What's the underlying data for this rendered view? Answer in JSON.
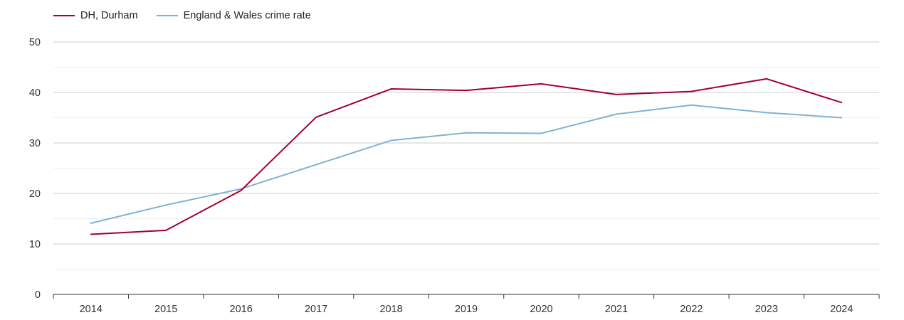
{
  "chart_data": {
    "type": "line",
    "title": "",
    "xlabel": "",
    "ylabel": "",
    "categories": [
      "2014",
      "2015",
      "2016",
      "2017",
      "2018",
      "2019",
      "2020",
      "2021",
      "2022",
      "2023",
      "2024"
    ],
    "ylim": [
      0,
      50
    ],
    "yticks": [
      "0",
      "10",
      "20",
      "30",
      "40",
      "50"
    ],
    "grid": true,
    "legend_position": "top-left",
    "series": [
      {
        "name": "DH, Durham",
        "color": "#a3002c",
        "values": [
          11.9,
          12.7,
          20.6,
          35.1,
          40.7,
          40.4,
          41.7,
          39.6,
          40.2,
          42.7,
          38.0
        ]
      },
      {
        "name": "England & Wales crime rate",
        "color": "#7fb2d3",
        "values": [
          14.1,
          17.7,
          20.9,
          25.7,
          30.5,
          32.0,
          31.9,
          35.7,
          37.5,
          36.0,
          35.0
        ]
      }
    ]
  }
}
